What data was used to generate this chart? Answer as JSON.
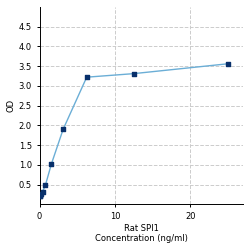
{
  "x": [
    0.0,
    0.049,
    0.098,
    0.195,
    0.39,
    0.781,
    1.563,
    3.125,
    6.25,
    12.5,
    25
  ],
  "y": [
    0.197,
    0.213,
    0.232,
    0.257,
    0.316,
    0.491,
    1.02,
    1.9,
    3.22,
    3.31,
    3.56
  ],
  "line_color": "#6baed6",
  "marker_color": "#08306b",
  "marker_size": 5,
  "xlabel_line1": "Rat SPI1",
  "xlabel_line2": "Concentration (ng/ml)",
  "ylabel": "OD",
  "xlim": [
    0,
    27
  ],
  "ylim": [
    0,
    5.0
  ],
  "yticks": [
    0.5,
    1.0,
    1.5,
    2.0,
    2.5,
    3.0,
    3.5,
    4.0,
    4.5
  ],
  "xtick_positions": [
    0,
    10,
    20
  ],
  "xtick_labels": [
    "0",
    "10",
    "20"
  ],
  "grid_color": "#cccccc",
  "background_color": "#ffffff",
  "title_fontsize": 7,
  "label_fontsize": 6,
  "tick_fontsize": 6
}
